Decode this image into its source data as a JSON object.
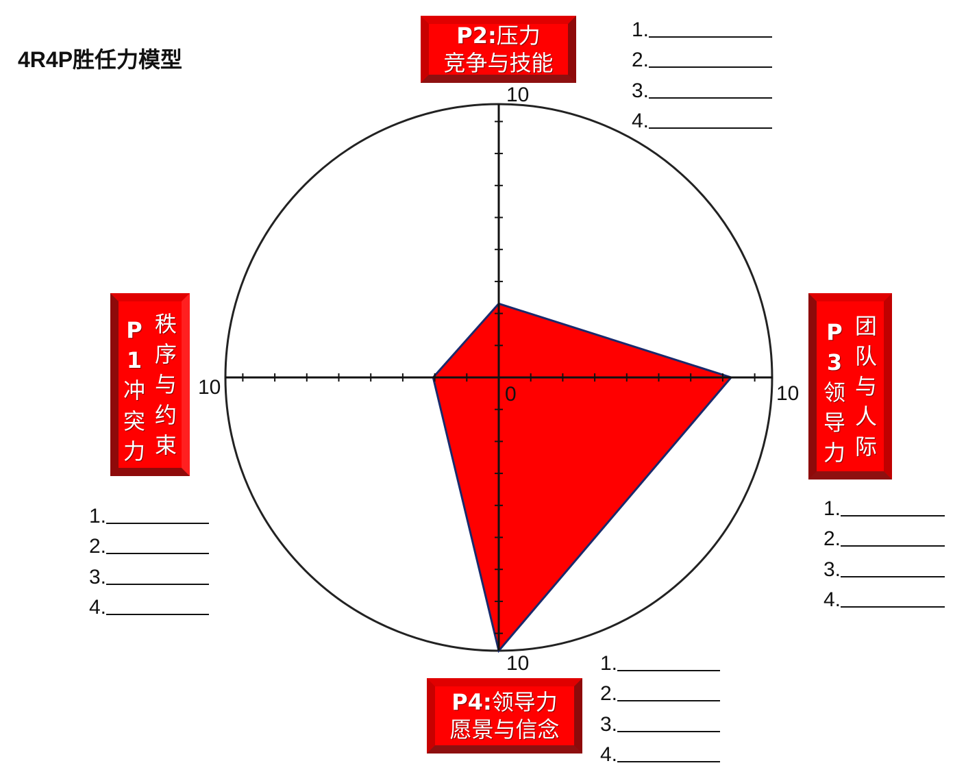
{
  "title": "4R4P胜任力模型",
  "boxes": {
    "p1": {
      "code": "P1",
      "name": "冲突力",
      "subtitle": "秩序与约束"
    },
    "p2": {
      "line1_code": "P2:",
      "line1_name": "压力",
      "line2": "竞争与技能"
    },
    "p3": {
      "code": "P3",
      "name": "领导力",
      "subtitle": "团队与人际"
    },
    "p4": {
      "line1_code": "P4:",
      "line1_name": "领导力",
      "line2": "愿景与信念"
    }
  },
  "blank_labels": [
    "1.",
    "2.",
    "3.",
    "4."
  ],
  "axis_labels": {
    "top": "10",
    "right": "10",
    "bottom": "10",
    "left": "10",
    "origin": "0"
  },
  "colors": {
    "fill": "#ff0000",
    "outline": "#1a2a6c",
    "box": "#ff0000"
  },
  "chart_data": {
    "type": "radar",
    "axes": [
      "P2 (top)",
      "P3 (right)",
      "P4 (bottom)",
      "P1 (left)"
    ],
    "values": [
      2.7,
      8.5,
      10,
      2.4
    ],
    "range": [
      0,
      10
    ]
  }
}
